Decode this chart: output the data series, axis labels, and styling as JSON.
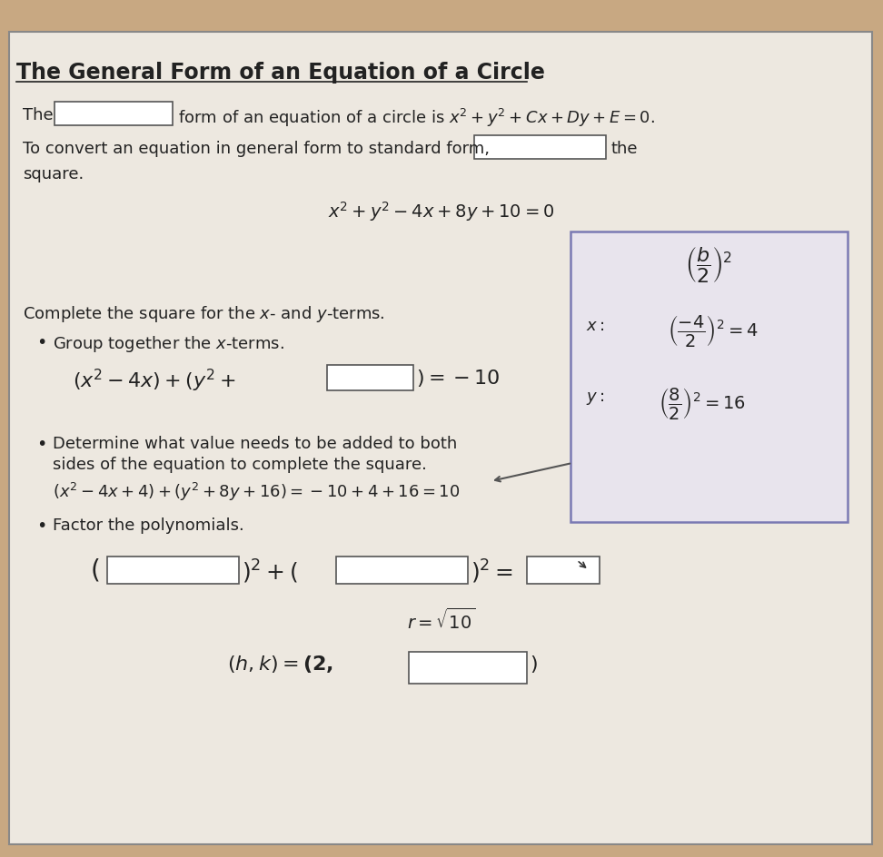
{
  "title": "The General Form of an Equation of a Circle",
  "bg_color": "#c8a882",
  "panel_color": "#e8ddd0",
  "box_color": "white",
  "border_color": "#555555",
  "text_color": "#222222",
  "line1": "form of an equation of a circle is $x^2 + y^2 + Cx + Dy + E = 0$.",
  "line2a": "To convert an equation in general form to standard form,",
  "line2b": "the",
  "line2c": "square.",
  "eq_main": "$x^2 + y^2 - 4x + 8y + 10 = 0$",
  "complete_sq_title": "Complete the square for the $x$- and $y$-terms.",
  "group_x": "Group together the $x$-terms.",
  "eq_grouped": "$(x^2 - 4x) + (y^2 +$",
  "eq_grouped2": "$) = -10$",
  "det_val": "Determine what value needs to be added to both",
  "det_val2": "sides of the equation to complete the square.",
  "eq_complete": "$(x^2 - 4x + 4) + (y^2 + 8y + 16) = -10 + 4 + 16 = 10$",
  "factor_poly": "Factor the polynomials.",
  "eq_factor1": "$)^2 + ($",
  "eq_factor2": "$)^2 =$",
  "r_eq": "$r = \\sqrt{10}$",
  "hk_eq": "$(h, k) = (2,$",
  "hk_eq2": "$)$"
}
